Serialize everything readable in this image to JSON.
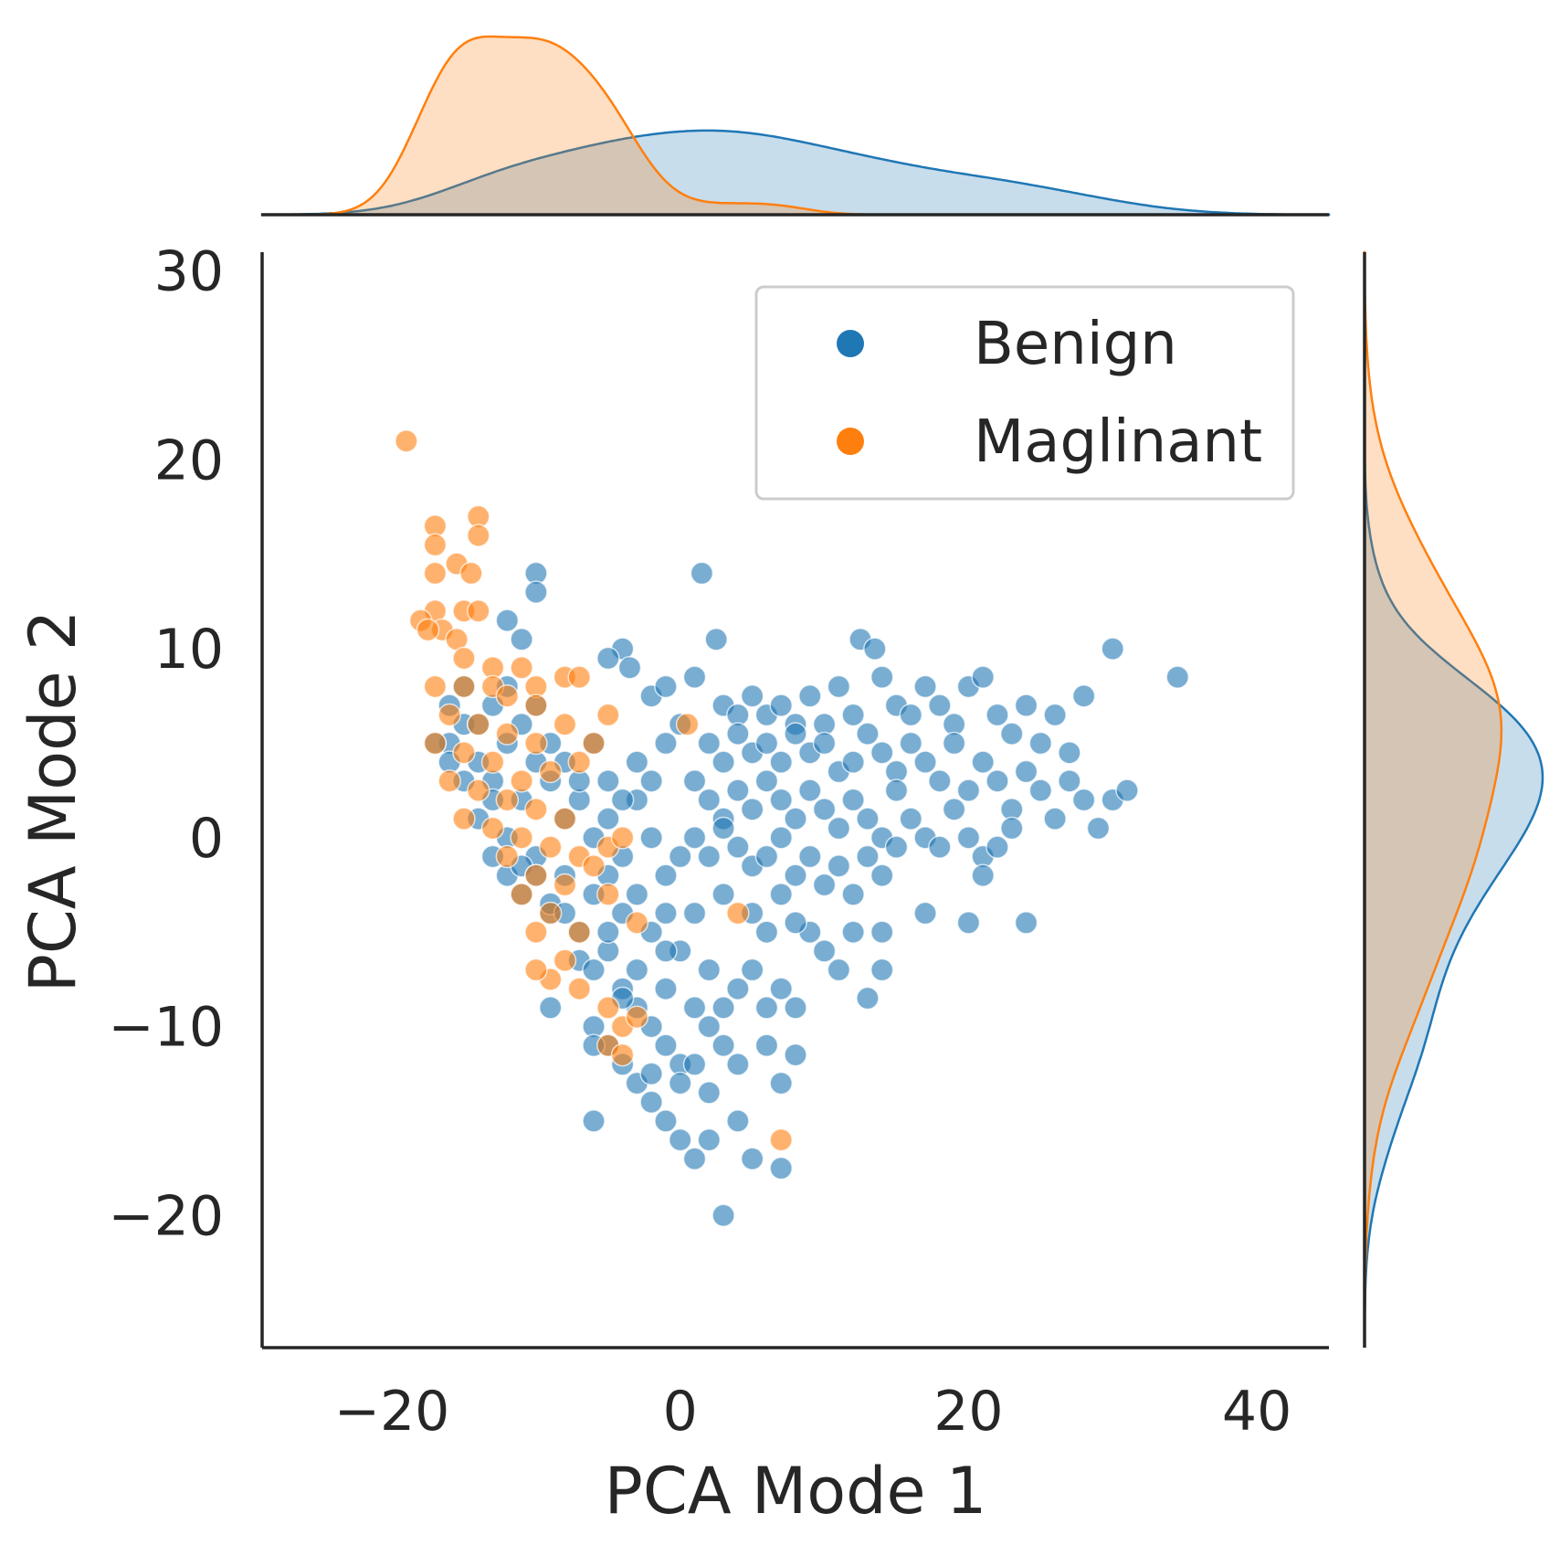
{
  "chart_data": {
    "type": "scatter",
    "subtype": "jointplot with marginal KDE",
    "xlabel": "PCA Mode 1",
    "ylabel": "PCA Mode 2",
    "xlim": [
      -29,
      45
    ],
    "ylim": [
      -27,
      31
    ],
    "xticks": [
      -20,
      0,
      20,
      40
    ],
    "yticks": [
      -20,
      -10,
      0,
      10,
      20,
      30
    ],
    "xtick_labels": [
      "−20",
      "0",
      "20",
      "40"
    ],
    "ytick_labels": [
      "−20",
      "−10",
      "0",
      "10",
      "20",
      "30"
    ],
    "grid": false,
    "legend": {
      "placement": "upper right",
      "entries": [
        {
          "label": "Benign",
          "color": "#1f77b4"
        },
        {
          "label": "Maglinant",
          "color": "#ff7f0e"
        }
      ]
    },
    "series": [
      {
        "name": "Benign",
        "color": "#1f77b4",
        "points": [
          [
            -10,
            14
          ],
          [
            -10,
            13
          ],
          [
            -12,
            11.5
          ],
          [
            -11,
            10.5
          ],
          [
            -4,
            10
          ],
          [
            1.5,
            14
          ],
          [
            2.5,
            10.5
          ],
          [
            12.5,
            10.5
          ],
          [
            13.5,
            10
          ],
          [
            30,
            10
          ],
          [
            34.5,
            8.5
          ],
          [
            -5,
            9.5
          ],
          [
            -3.5,
            9
          ],
          [
            -2,
            7.5
          ],
          [
            -1,
            8
          ],
          [
            1,
            8.5
          ],
          [
            3,
            7
          ],
          [
            4,
            6.5
          ],
          [
            5,
            7.5
          ],
          [
            6,
            6.5
          ],
          [
            7,
            7
          ],
          [
            8,
            6
          ],
          [
            9,
            7.5
          ],
          [
            10,
            6
          ],
          [
            11,
            8
          ],
          [
            12,
            6.5
          ],
          [
            14,
            8.5
          ],
          [
            15,
            7
          ],
          [
            16,
            6.5
          ],
          [
            17,
            8
          ],
          [
            18,
            7
          ],
          [
            19,
            6
          ],
          [
            20,
            8
          ],
          [
            21,
            8.5
          ],
          [
            22,
            6.5
          ],
          [
            23,
            5.5
          ],
          [
            24,
            7
          ],
          [
            25,
            5
          ],
          [
            26,
            6.5
          ],
          [
            27,
            4.5
          ],
          [
            28,
            7.5
          ],
          [
            2,
            5
          ],
          [
            3,
            4
          ],
          [
            4,
            5.5
          ],
          [
            5,
            4.5
          ],
          [
            6,
            5
          ],
          [
            7,
            4
          ],
          [
            8,
            5.5
          ],
          [
            9,
            4.5
          ],
          [
            10,
            5
          ],
          [
            11,
            3.5
          ],
          [
            12,
            4
          ],
          [
            13,
            5.5
          ],
          [
            14,
            4.5
          ],
          [
            15,
            3.5
          ],
          [
            16,
            5
          ],
          [
            17,
            4
          ],
          [
            18,
            3
          ],
          [
            19,
            5
          ],
          [
            20,
            2.5
          ],
          [
            21,
            4
          ],
          [
            22,
            3
          ],
          [
            23,
            1.5
          ],
          [
            24,
            3.5
          ],
          [
            25,
            2.5
          ],
          [
            26,
            1
          ],
          [
            27,
            3
          ],
          [
            28,
            2
          ],
          [
            30,
            2
          ],
          [
            31,
            2.5
          ],
          [
            29,
            0.5
          ],
          [
            1,
            3
          ],
          [
            2,
            2
          ],
          [
            3,
            1
          ],
          [
            4,
            2.5
          ],
          [
            5,
            1.5
          ],
          [
            6,
            3
          ],
          [
            7,
            2
          ],
          [
            8,
            1
          ],
          [
            9,
            2.5
          ],
          [
            10,
            1.5
          ],
          [
            11,
            0.5
          ],
          [
            12,
            2
          ],
          [
            13,
            1
          ],
          [
            14,
            0
          ],
          [
            15,
            2.5
          ],
          [
            16,
            1
          ],
          [
            17,
            0
          ],
          [
            18,
            -0.5
          ],
          [
            19,
            1.5
          ],
          [
            20,
            0
          ],
          [
            21,
            -1
          ],
          [
            22,
            -0.5
          ],
          [
            23,
            0.5
          ],
          [
            1,
            0
          ],
          [
            2,
            -1
          ],
          [
            3,
            0.5
          ],
          [
            4,
            -0.5
          ],
          [
            5,
            -1.5
          ],
          [
            6,
            -1
          ],
          [
            7,
            0
          ],
          [
            8,
            -2
          ],
          [
            9,
            -1
          ],
          [
            10,
            -2.5
          ],
          [
            11,
            -1.5
          ],
          [
            12,
            -3
          ],
          [
            13,
            -1
          ],
          [
            14,
            -2
          ],
          [
            15,
            -0.5
          ],
          [
            17,
            -4
          ],
          [
            20,
            -4.5
          ],
          [
            24,
            -4.5
          ],
          [
            21,
            -2
          ],
          [
            11,
            -7
          ],
          [
            13,
            -8.5
          ],
          [
            14,
            -7
          ],
          [
            9,
            -5
          ],
          [
            10,
            -6
          ],
          [
            12,
            -5
          ],
          [
            14,
            -5
          ],
          [
            -16,
            5
          ],
          [
            -15,
            6
          ],
          [
            -14,
            4
          ],
          [
            -13,
            3
          ],
          [
            -12,
            5
          ],
          [
            -11,
            2
          ],
          [
            -10,
            4
          ],
          [
            -9,
            3
          ],
          [
            -8,
            1
          ],
          [
            -7,
            2
          ],
          [
            -6,
            0
          ],
          [
            -5,
            1
          ],
          [
            -4,
            -1
          ],
          [
            -3,
            2
          ],
          [
            -2,
            0
          ],
          [
            -1,
            -2
          ],
          [
            0,
            -1
          ],
          [
            -14,
            1
          ],
          [
            -13,
            -1
          ],
          [
            -12,
            -2
          ],
          [
            -11,
            -3
          ],
          [
            -10,
            -1
          ],
          [
            -9,
            -4
          ],
          [
            -8,
            -2
          ],
          [
            -7,
            -5
          ],
          [
            -6,
            -3
          ],
          [
            -5,
            -6
          ],
          [
            -4,
            -4
          ],
          [
            -3,
            -7
          ],
          [
            -2,
            -5
          ],
          [
            -1,
            -8
          ],
          [
            0,
            -6
          ],
          [
            1,
            -4
          ],
          [
            2,
            -7
          ],
          [
            -12,
            0
          ],
          [
            -11,
            -1.5
          ],
          [
            -10,
            -2
          ],
          [
            -9,
            -3.5
          ],
          [
            -8,
            -4
          ],
          [
            -7,
            -6.5
          ],
          [
            -6,
            -7
          ],
          [
            -5,
            -5
          ],
          [
            -4,
            -8
          ],
          [
            -3,
            -9
          ],
          [
            -2,
            -10
          ],
          [
            -1,
            -11
          ],
          [
            0,
            -12
          ],
          [
            1,
            -9
          ],
          [
            2,
            -10
          ],
          [
            3,
            -11
          ],
          [
            4,
            -8
          ],
          [
            5,
            -7
          ],
          [
            6,
            -9
          ],
          [
            7,
            -8
          ],
          [
            -6,
            -10
          ],
          [
            -5,
            -11
          ],
          [
            -4,
            -12
          ],
          [
            -3,
            -13
          ],
          [
            -2,
            -14
          ],
          [
            -1,
            -15
          ],
          [
            0,
            -16
          ],
          [
            1,
            -17
          ],
          [
            2,
            -16
          ],
          [
            3,
            -20
          ],
          [
            -6,
            -15
          ],
          [
            5,
            -17
          ],
          [
            7,
            -17.5
          ],
          [
            4,
            -15
          ],
          [
            7,
            -13
          ],
          [
            6,
            -11
          ],
          [
            8,
            -11.5
          ],
          [
            8,
            -9
          ],
          [
            -9,
            -9
          ],
          [
            -6,
            -11
          ],
          [
            -4,
            -8.5
          ],
          [
            -2,
            -12.5
          ],
          [
            0,
            -13
          ],
          [
            2,
            -13.5
          ],
          [
            4,
            -12
          ],
          [
            1,
            -12
          ],
          [
            3,
            -9
          ],
          [
            -1,
            -4
          ],
          [
            3,
            -3
          ],
          [
            5,
            -4
          ],
          [
            6,
            -5
          ],
          [
            7,
            -3
          ],
          [
            8,
            -4.5
          ],
          [
            -5,
            -2
          ],
          [
            -3,
            -3
          ],
          [
            -1,
            -6
          ],
          [
            -3,
            4
          ],
          [
            -2,
            3
          ],
          [
            -1,
            5
          ],
          [
            0,
            6
          ],
          [
            -4,
            2
          ],
          [
            -5,
            3
          ],
          [
            -6,
            5
          ],
          [
            -7,
            3
          ],
          [
            -8,
            4
          ],
          [
            -9,
            5
          ],
          [
            -10,
            7
          ],
          [
            -11,
            6
          ],
          [
            -15,
            8
          ],
          [
            -16,
            7
          ],
          [
            -17,
            5
          ],
          [
            -13,
            7
          ],
          [
            -12,
            8
          ],
          [
            -14,
            6
          ],
          [
            -15,
            3
          ],
          [
            -13,
            2
          ],
          [
            -16,
            4
          ]
        ]
      },
      {
        "name": "Maglinant",
        "color": "#ff7f0e",
        "points": [
          [
            -19,
            21
          ],
          [
            -14,
            17
          ],
          [
            -14,
            16
          ],
          [
            -17,
            16.5
          ],
          [
            -17,
            15.5
          ],
          [
            -15.5,
            14.5
          ],
          [
            -17,
            14
          ],
          [
            -14.5,
            14
          ],
          [
            -17,
            12
          ],
          [
            -18,
            11.5
          ],
          [
            -15,
            12
          ],
          [
            -14,
            12
          ],
          [
            -16.5,
            11
          ],
          [
            -17.5,
            11
          ],
          [
            -15.5,
            10.5
          ],
          [
            -15,
            9.5
          ],
          [
            -13,
            9
          ],
          [
            -11,
            9
          ],
          [
            -10,
            8
          ],
          [
            -8,
            8.5
          ],
          [
            -7,
            8.5
          ],
          [
            -17,
            8
          ],
          [
            -15,
            8
          ],
          [
            -13,
            8
          ],
          [
            -12,
            7.5
          ],
          [
            -10,
            7
          ],
          [
            -16,
            6.5
          ],
          [
            -14,
            6
          ],
          [
            -12,
            5.5
          ],
          [
            -10,
            5
          ],
          [
            -8,
            6
          ],
          [
            -5,
            6.5
          ],
          [
            0.5,
            6
          ],
          [
            -17,
            5
          ],
          [
            -15,
            4.5
          ],
          [
            -13,
            4
          ],
          [
            -11,
            3
          ],
          [
            -9,
            3.5
          ],
          [
            -7,
            4
          ],
          [
            -6,
            5
          ],
          [
            -16,
            3
          ],
          [
            -14,
            2.5
          ],
          [
            -12,
            2
          ],
          [
            -10,
            1.5
          ],
          [
            -8,
            1
          ],
          [
            -15,
            1
          ],
          [
            -13,
            0.5
          ],
          [
            -11,
            0
          ],
          [
            -9,
            -0.5
          ],
          [
            -7,
            -1
          ],
          [
            -5,
            -0.5
          ],
          [
            -4,
            0
          ],
          [
            -12,
            -1
          ],
          [
            -10,
            -2
          ],
          [
            -8,
            -2.5
          ],
          [
            -6,
            -1.5
          ],
          [
            -11,
            -3
          ],
          [
            -9,
            -4
          ],
          [
            -7,
            -5
          ],
          [
            -5,
            -3
          ],
          [
            -3,
            -4.5
          ],
          [
            -10,
            -5
          ],
          [
            -8,
            -6.5
          ],
          [
            -7,
            -8
          ],
          [
            -5,
            -9
          ],
          [
            -4,
            -10
          ],
          [
            -3,
            -9.5
          ],
          [
            -5,
            -11
          ],
          [
            -4,
            -11.5
          ],
          [
            -9,
            -7.5
          ],
          [
            -10,
            -7
          ],
          [
            4,
            -4
          ],
          [
            7,
            -16
          ]
        ]
      }
    ],
    "marginal": {
      "top": {
        "type": "kde",
        "axis": "x"
      },
      "right": {
        "type": "kde",
        "axis": "y"
      }
    }
  }
}
